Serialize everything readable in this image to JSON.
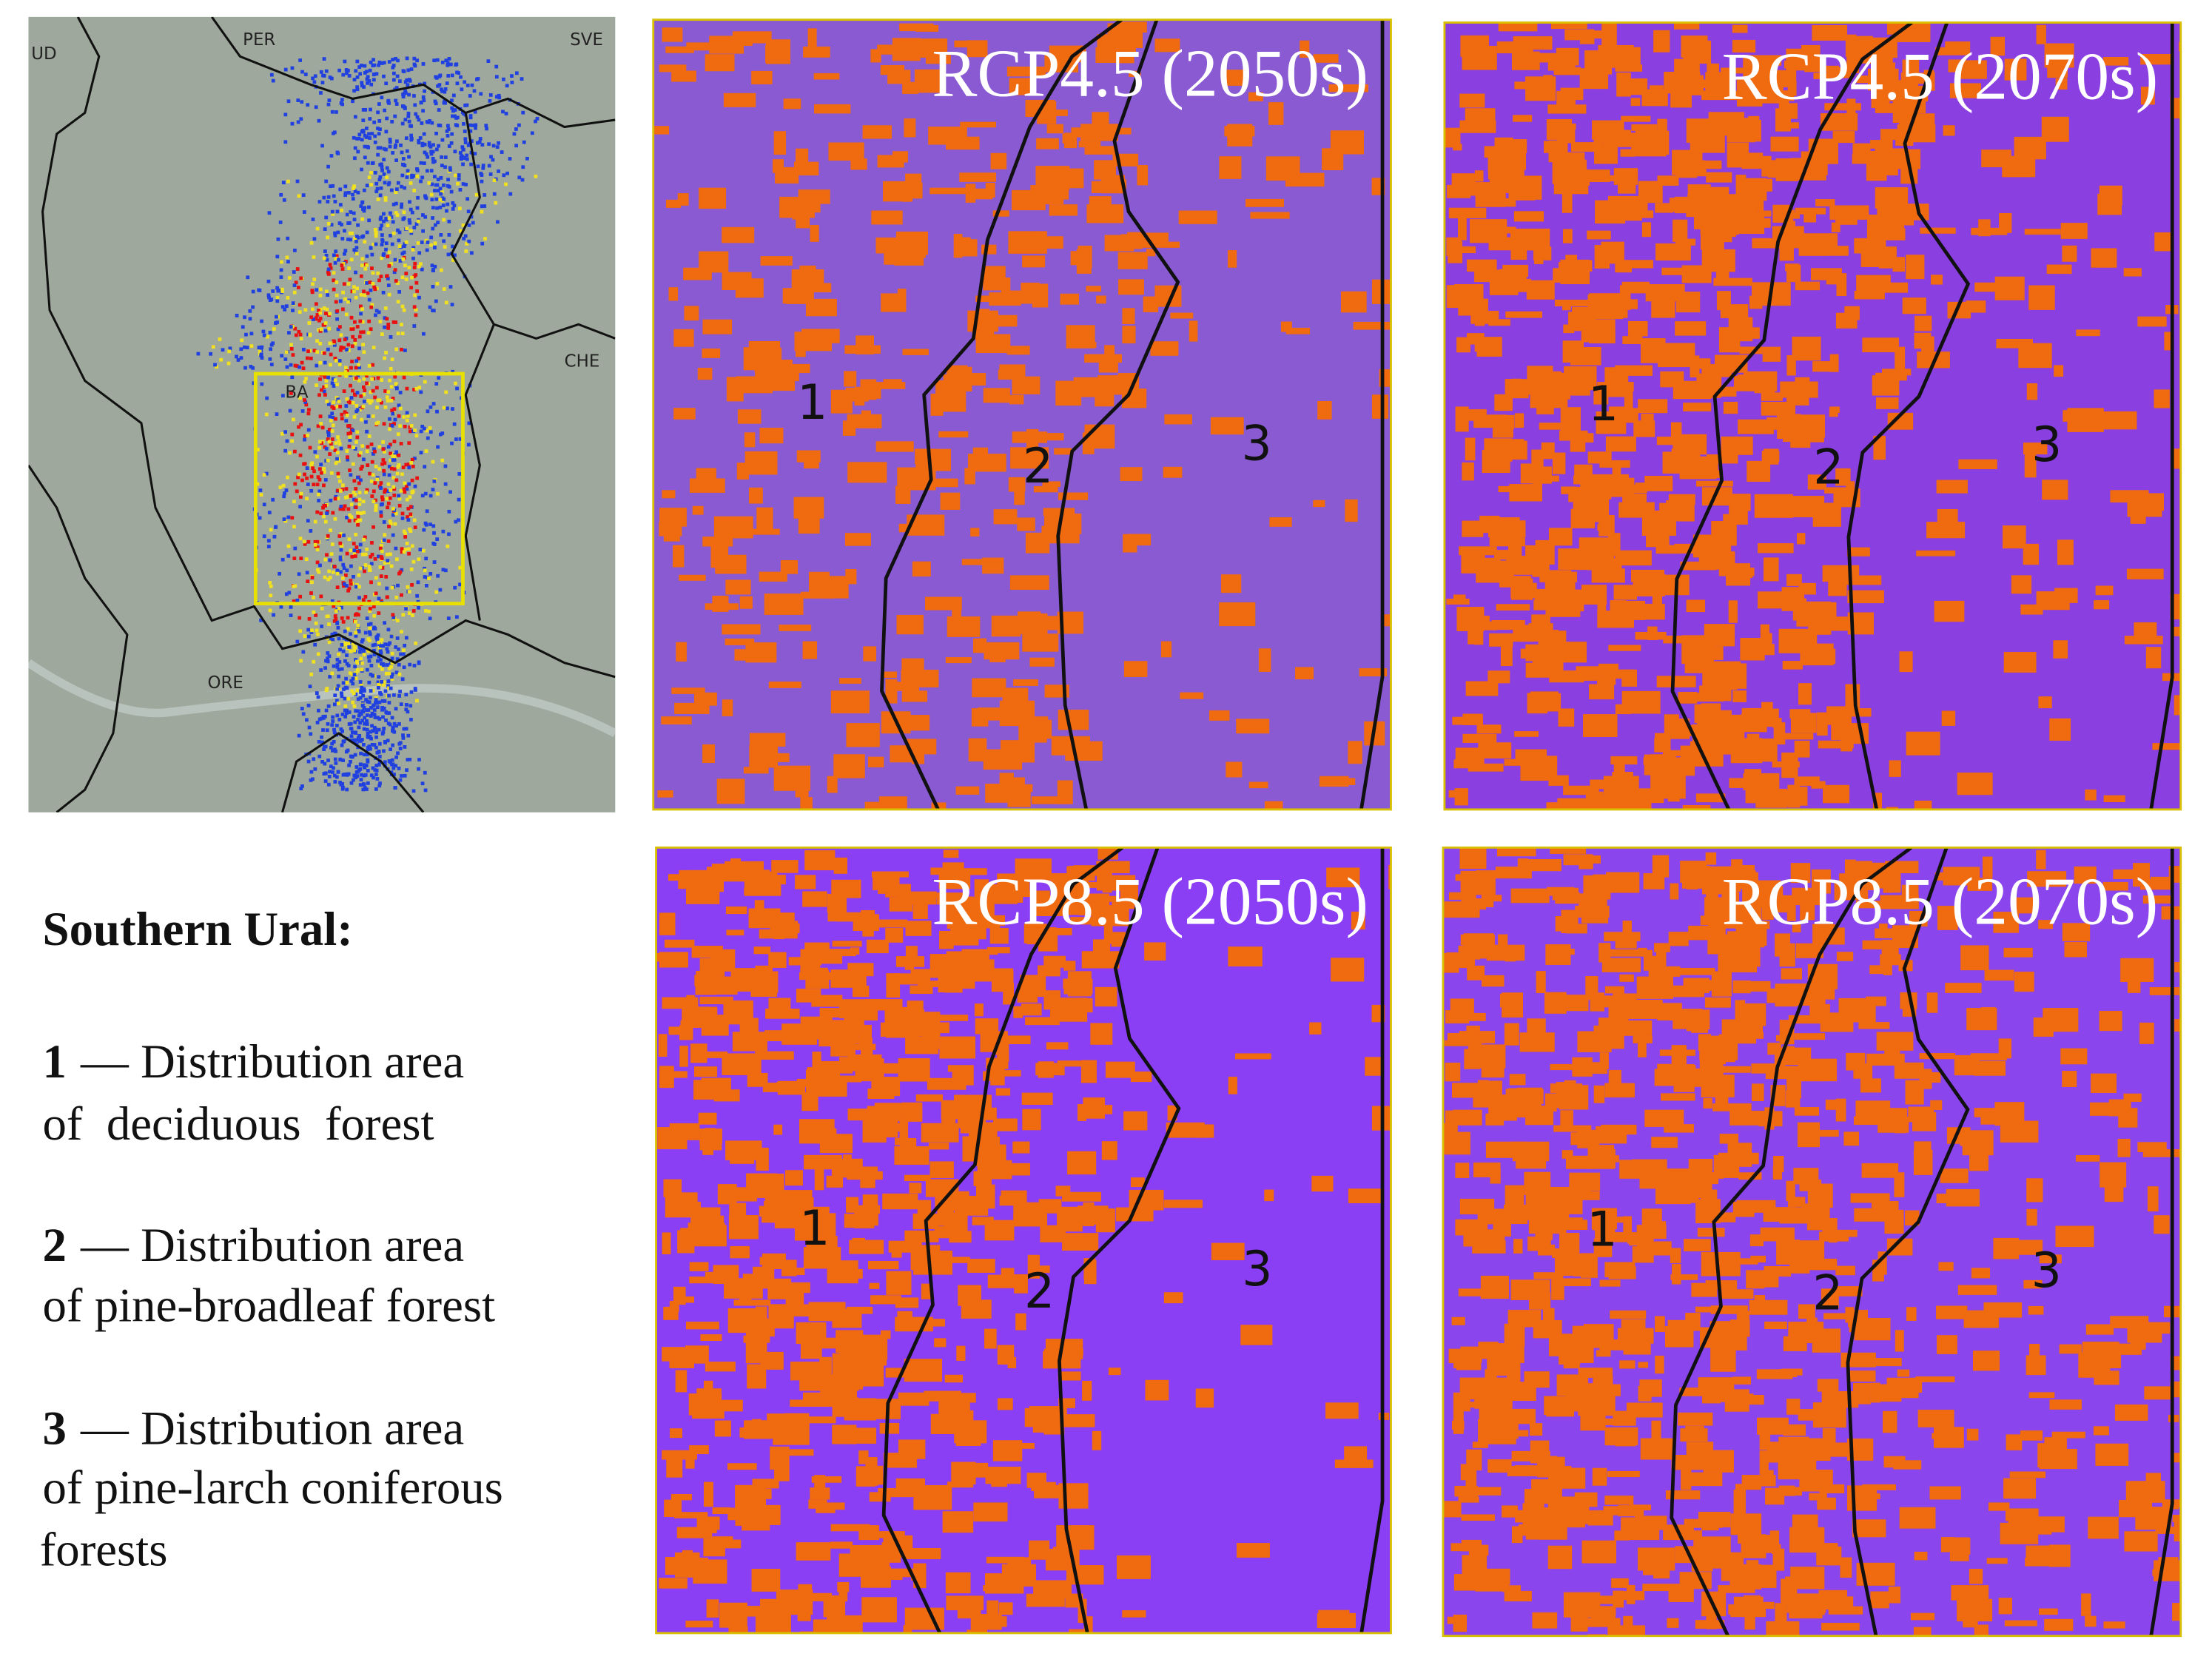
{
  "overview_map": {
    "labels": [
      "UD",
      "PER",
      "SVE",
      "CHE",
      "BA",
      "ORE"
    ]
  },
  "panels": [
    {
      "title": "RCP4.5 (2050s)",
      "zones": [
        "1",
        "2",
        "3"
      ]
    },
    {
      "title": "RCP4.5 (2070s)",
      "zones": [
        "1",
        "2",
        "3"
      ]
    },
    {
      "title": "RCP8.5 (2050s)",
      "zones": [
        "1",
        "2",
        "3"
      ]
    },
    {
      "title": "RCP8.5 (2070s)",
      "zones": [
        "1",
        "2",
        "3"
      ]
    }
  ],
  "legend": {
    "title": "Southern Ural:",
    "items": [
      {
        "number": "1",
        "lines": [
          "— Distribution area",
          "of  deciduous  forest"
        ]
      },
      {
        "number": "2",
        "lines": [
          "— Distribution area",
          "of pine-broadleaf forest"
        ]
      },
      {
        "number": "3",
        "lines": [
          "— Distribution area",
          "of pine-larch coniferous",
          "forests"
        ]
      }
    ]
  }
}
